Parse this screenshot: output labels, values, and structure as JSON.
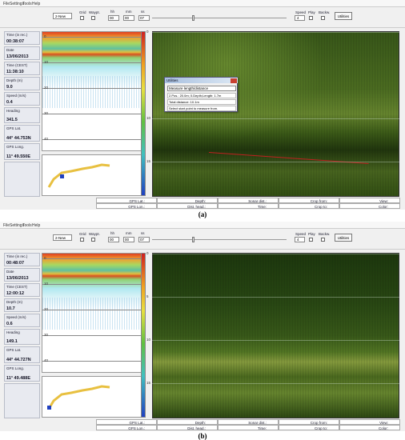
{
  "panels": [
    {
      "caption": "(a)",
      "menu": [
        "File",
        "Settings",
        "Tools",
        "Help"
      ],
      "toolbar": {
        "view": "2-New",
        "grid": "Grid",
        "waypt": "Waypt.",
        "time_labels": [
          "hh",
          "mm",
          "ss"
        ],
        "time_values": [
          "00",
          "00",
          "07"
        ],
        "speed": "Speed",
        "speed_value": "4",
        "play": "Play",
        "backw": "Backw.",
        "utilities": "Utilities"
      },
      "info": [
        {
          "label": "Time (in rec.)",
          "value": "00:38:07"
        },
        {
          "label": "Date",
          "value": "13/06/2013"
        },
        {
          "label": "Time (CEST)",
          "value": "11:38:10"
        },
        {
          "label": "Depth (m)",
          "value": "9.0"
        },
        {
          "label": "Speed (m/s)",
          "value": "0.4"
        },
        {
          "label": "Heading",
          "value": "341.5"
        },
        {
          "label": "GPS Lat.",
          "value": "44° 44.753N"
        },
        {
          "label": "GPS Long.",
          "value": "11° 49.550E"
        }
      ],
      "echogram_axis": [
        0,
        10,
        20,
        30,
        40
      ],
      "sonar_axis": [
        0,
        10,
        15
      ],
      "dialog": {
        "title": "Utilities",
        "mode": "Measure length/distance",
        "lines": [
          "2.Pos.: 20.0m; 0.Depth;Length: 1.7m",
          "Total distance: 10.1m",
          "Select start point to measure from."
        ]
      },
      "status": [
        [
          "GPS Lat.:",
          "Depth:",
          "Sonar dist.:",
          "Crop from:",
          "View:"
        ],
        [
          "GPS Lon.:",
          "Dist. head.:",
          "Time:",
          "Crop to:",
          "Color:"
        ]
      ]
    },
    {
      "caption": "(b)",
      "menu": [
        "File",
        "Settings",
        "Tools",
        "Help"
      ],
      "toolbar": {
        "view": "2-New",
        "grid": "Grid",
        "waypt": "Waypt.",
        "time_labels": [
          "hh",
          "mm",
          "ss"
        ],
        "time_values": [
          "00",
          "00",
          "07"
        ],
        "speed": "Speed",
        "speed_value": "4",
        "play": "Play",
        "backw": "Backw.",
        "utilities": "Utilities"
      },
      "info": [
        {
          "label": "Time (in rec.)",
          "value": "00:48:07"
        },
        {
          "label": "Date",
          "value": "13/06/2013"
        },
        {
          "label": "Time (CEST)",
          "value": "12:00:12"
        },
        {
          "label": "Depth (m)",
          "value": "10.7"
        },
        {
          "label": "Speed (m/s)",
          "value": "0.6"
        },
        {
          "label": "Heading",
          "value": "149.1"
        },
        {
          "label": "GPS Lat.",
          "value": "44° 44.727N"
        },
        {
          "label": "GPS Long.",
          "value": "11° 49.488E"
        }
      ],
      "echogram_axis": [
        0,
        10,
        20,
        30,
        40
      ],
      "sonar_axis": [
        0,
        5,
        10,
        15
      ],
      "status": [
        [
          "GPS Lat.:",
          "Depth:",
          "Sonar dist.:",
          "Crop from:",
          "View:"
        ],
        [
          "GPS Lon.:",
          "Dist. head.:",
          "Time:",
          "Crop to:",
          "Color:"
        ]
      ]
    }
  ]
}
